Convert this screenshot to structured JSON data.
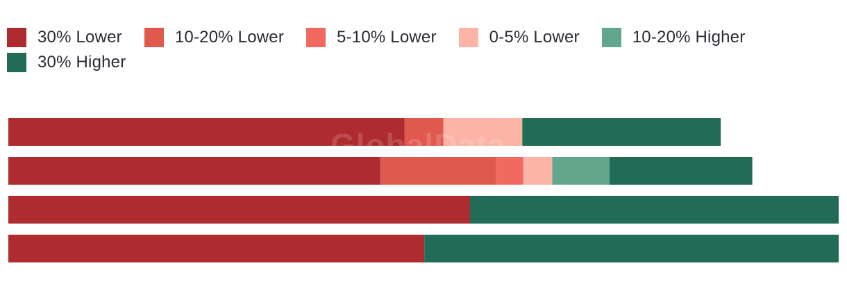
{
  "watermark": "GlobalData",
  "chart_data": {
    "type": "bar",
    "orientation": "horizontal",
    "stacked": true,
    "normalized_to_percent": true,
    "legend_position": "top",
    "grid": false,
    "categories": [
      "",
      "",
      "",
      ""
    ],
    "series": [
      {
        "name": "30% Lower",
        "color": "#ae2b2f",
        "values": [
          47.7,
          44.8,
          55.6,
          50.1
        ]
      },
      {
        "name": "10-20% Lower",
        "color": "#e0594e",
        "values": [
          4.7,
          13.9,
          0,
          0
        ]
      },
      {
        "name": "5-10% Lower",
        "color": "#f26a5f",
        "values": [
          0,
          3.3,
          0,
          0
        ]
      },
      {
        "name": "0-5% Lower",
        "color": "#fbb4a5",
        "values": [
          9.5,
          3.5,
          0,
          0
        ]
      },
      {
        "name": "10-20% Higher",
        "color": "#62a68e",
        "values": [
          0,
          6.9,
          0,
          0
        ]
      },
      {
        "name": "30% Higher",
        "color": "#226b57",
        "values": [
          23.9,
          17.2,
          44.4,
          49.9
        ]
      }
    ]
  }
}
